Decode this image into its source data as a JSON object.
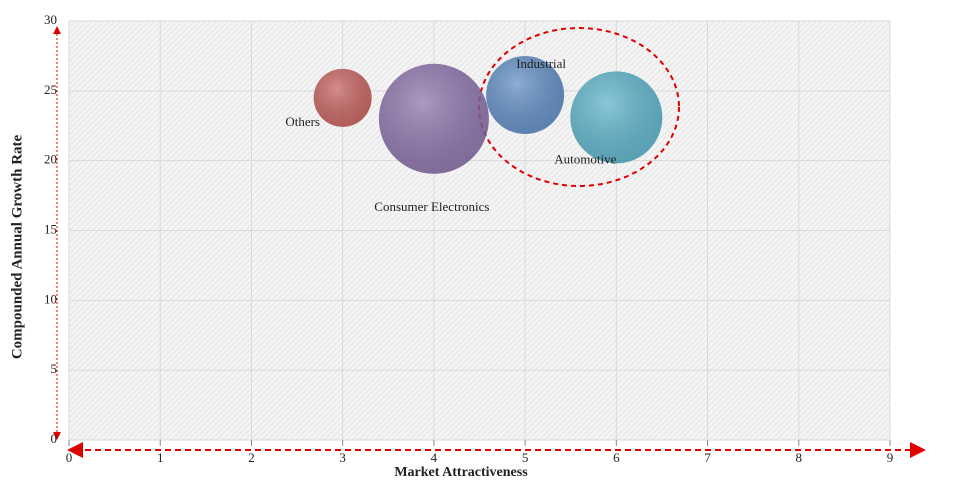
{
  "chart_data": {
    "type": "bubble",
    "x_label": "Market Attractiveness",
    "y_label": "Compounded  Annual  Growth Rate",
    "xlim": [
      0,
      9
    ],
    "xticks": [
      0,
      1,
      2,
      3,
      4,
      5,
      6,
      7,
      8,
      9
    ],
    "ylim": [
      0,
      30
    ],
    "yticks": [
      0,
      5,
      10,
      15,
      20,
      25,
      30
    ],
    "grid": true,
    "series": [
      {
        "name": "Others",
        "color": "#c0504d",
        "x": [
          3
        ],
        "values": [
          24.5
        ],
        "size": [
          29
        ]
      },
      {
        "name": "Consumer Electronics",
        "color": "#8064a2",
        "x": [
          4
        ],
        "values": [
          23
        ],
        "size": [
          55
        ]
      },
      {
        "name": "Industrial",
        "color": "#4f81bd",
        "x": [
          5
        ],
        "values": [
          24.7
        ],
        "size": [
          39
        ]
      },
      {
        "name": "Automotive",
        "color": "#4bacc6",
        "x": [
          6
        ],
        "values": [
          23.1
        ],
        "size": [
          46
        ]
      }
    ]
  }
}
